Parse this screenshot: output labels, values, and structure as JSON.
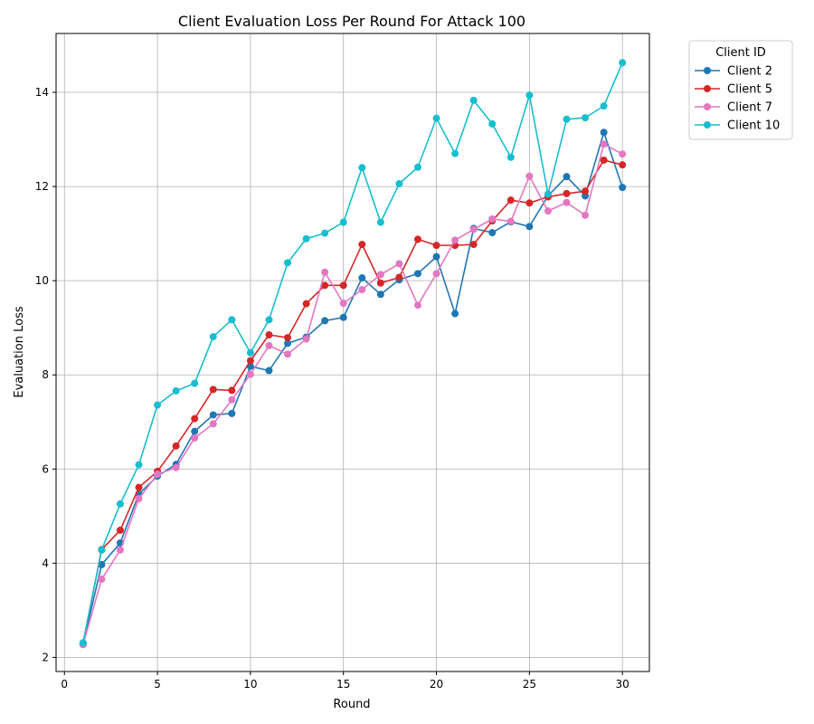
{
  "chart_data": {
    "type": "line",
    "title": "Client Evaluation Loss Per Round For Attack 100",
    "xlabel": "Round",
    "ylabel": "Evaluation Loss",
    "xlim": [
      -0.45,
      31.45
    ],
    "ylim": [
      1.7,
      15.25
    ],
    "xticks": [
      0,
      5,
      10,
      15,
      20,
      25,
      30
    ],
    "yticks": [
      2,
      4,
      6,
      8,
      10,
      12,
      14
    ],
    "grid": true,
    "legend": {
      "title": "Client ID",
      "placement": "outside-top-right"
    },
    "x": [
      1,
      2,
      3,
      4,
      5,
      6,
      7,
      8,
      9,
      10,
      11,
      12,
      13,
      14,
      15,
      16,
      17,
      18,
      19,
      20,
      21,
      22,
      23,
      24,
      25,
      26,
      27,
      28,
      29,
      30
    ],
    "series": [
      {
        "name": "Client 2",
        "color": "#1f77b4",
        "values": [
          2.28,
          3.97,
          4.43,
          5.47,
          5.85,
          6.1,
          6.8,
          7.15,
          7.18,
          8.18,
          8.09,
          8.67,
          8.8,
          9.15,
          9.22,
          10.06,
          9.71,
          10.02,
          10.15,
          10.51,
          9.3,
          11.11,
          11.02,
          11.25,
          11.15,
          11.8,
          12.21,
          11.8,
          13.15,
          11.98
        ]
      },
      {
        "name": "Client 5",
        "color": "#d62728",
        "values": [
          2.3,
          4.29,
          4.7,
          5.61,
          5.95,
          6.49,
          7.07,
          7.69,
          7.67,
          8.3,
          8.85,
          8.79,
          9.51,
          9.9,
          9.9,
          10.77,
          9.95,
          10.07,
          10.88,
          10.75,
          10.75,
          10.77,
          11.27,
          11.71,
          11.65,
          11.78,
          11.85,
          11.9,
          12.56,
          12.46
        ]
      },
      {
        "name": "Client 7",
        "color": "#e377c2",
        "values": [
          2.27,
          3.66,
          4.28,
          5.37,
          5.89,
          6.03,
          6.66,
          6.96,
          7.47,
          8.01,
          8.62,
          8.44,
          8.76,
          10.18,
          9.52,
          9.81,
          10.13,
          10.36,
          9.48,
          10.15,
          10.86,
          11.09,
          11.31,
          11.26,
          12.22,
          11.48,
          11.66,
          11.39,
          12.9,
          12.69
        ]
      },
      {
        "name": "Client 10",
        "color": "#17becf",
        "values": [
          2.31,
          4.28,
          5.26,
          6.09,
          7.36,
          7.66,
          7.82,
          8.81,
          9.17,
          8.47,
          9.17,
          10.38,
          10.89,
          11.01,
          11.24,
          12.4,
          11.24,
          12.06,
          12.41,
          13.45,
          12.7,
          13.83,
          13.33,
          12.62,
          13.94,
          11.84,
          13.43,
          13.46,
          13.71,
          14.63
        ]
      }
    ]
  }
}
